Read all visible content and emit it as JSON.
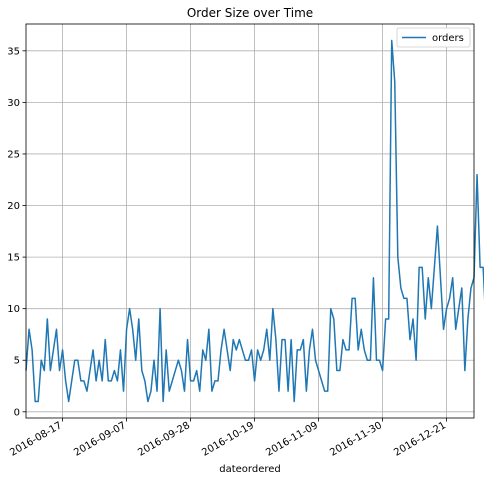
{
  "chart_data": {
    "type": "line",
    "title": "Order Size over Time",
    "xlabel": "dateordered",
    "ylabel": "",
    "x_start": "2016-08-05",
    "x_end": "2016-12-30",
    "ylim": [
      -0.6,
      37.6
    ],
    "yticks": [
      0,
      5,
      10,
      15,
      20,
      25,
      30,
      35
    ],
    "xticks": [
      "2016-08-17",
      "2016-09-07",
      "2016-09-28",
      "2016-10-19",
      "2016-11-09",
      "2016-11-30",
      "2016-12-21"
    ],
    "grid": true,
    "legend_position": "top-right",
    "series": [
      {
        "name": "orders",
        "color": "#1f77b4",
        "values": [
          4,
          8,
          6,
          1,
          1,
          5,
          4,
          9,
          4,
          6,
          8,
          4,
          6,
          3,
          1,
          3,
          5,
          5,
          3,
          3,
          2,
          4,
          6,
          3,
          5,
          3,
          7,
          3,
          3,
          4,
          3,
          6,
          2,
          8,
          10,
          8,
          5,
          9,
          4,
          3,
          1,
          2,
          5,
          2,
          10,
          1,
          6,
          2,
          3,
          4,
          5,
          4,
          2,
          7,
          3,
          3,
          4,
          2,
          6,
          5,
          8,
          2,
          3,
          3,
          6,
          8,
          6,
          4,
          7,
          6,
          7,
          6,
          5,
          5,
          6,
          3,
          6,
          5,
          6,
          8,
          5,
          10,
          7,
          2,
          7,
          7,
          2,
          7,
          1,
          6,
          6,
          7,
          2,
          6,
          8,
          5,
          4,
          3,
          2,
          2,
          10,
          9,
          4,
          4,
          7,
          6,
          6,
          11,
          11,
          6,
          8,
          6,
          5,
          5,
          13,
          5,
          5,
          4,
          9,
          9,
          36,
          32,
          15,
          12,
          11,
          11,
          7,
          9,
          5,
          14,
          14,
          9,
          13,
          10,
          14,
          18,
          13,
          8,
          10,
          11,
          13,
          8,
          10,
          12,
          4,
          9,
          12,
          13,
          23,
          14,
          14,
          8
        ]
      }
    ]
  }
}
